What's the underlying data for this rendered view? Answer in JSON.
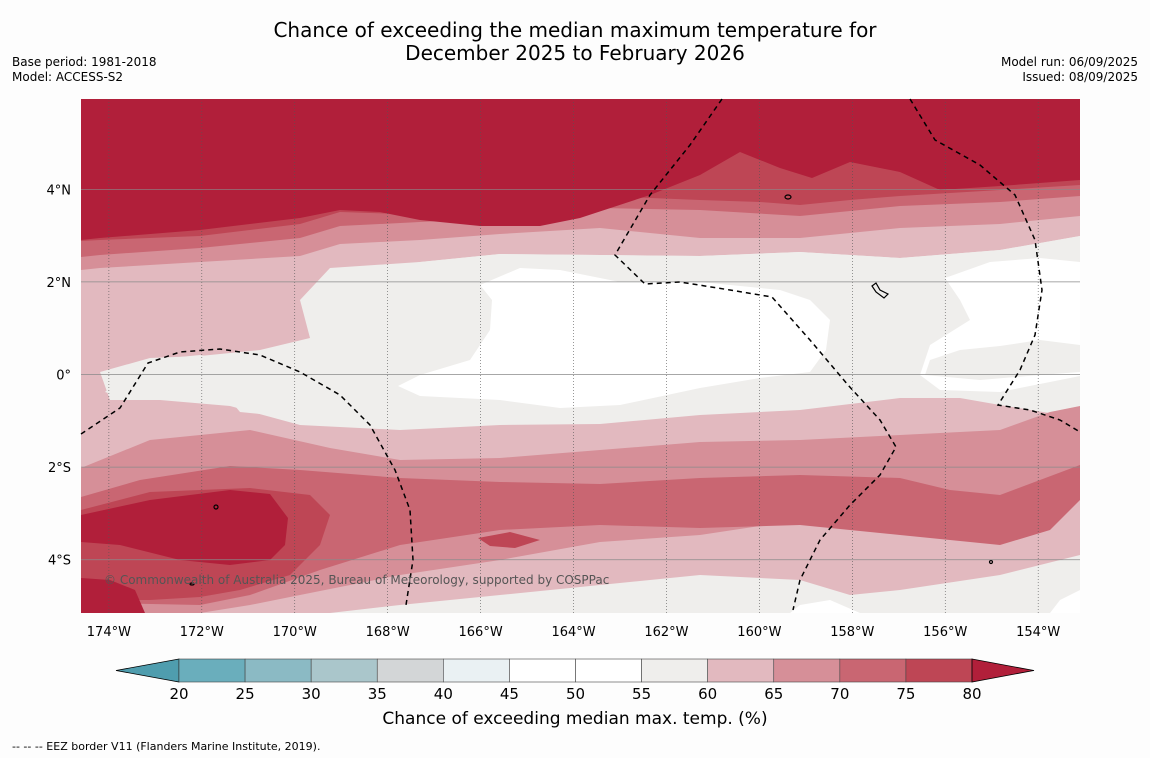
{
  "title": {
    "line1": "Chance of exceeding the median maximum temperature for",
    "line2": "December 2025 to February 2026"
  },
  "meta_left": {
    "base_period": "Base period: 1981-2018",
    "model": "Model: ACCESS-S2"
  },
  "meta_right": {
    "model_run": "Model run: 06/09/2025",
    "issued": "Issued: 08/09/2025"
  },
  "map": {
    "lon_ticks": [
      "174°W",
      "172°W",
      "170°W",
      "168°W",
      "166°W",
      "164°W",
      "162°W",
      "160°W",
      "158°W",
      "156°W",
      "154°W"
    ],
    "lat_ticks": [
      "4°N",
      "2°N",
      "0°",
      "2°S",
      "4°S"
    ],
    "lon_range": [
      -174.6,
      -153.1
    ],
    "lat_range": [
      -5.15,
      5.95
    ],
    "copyright": "© Commonwealth of Australia 2025, Bureau of Meteorology, supported by COSPPac"
  },
  "colorbar": {
    "ticks": [
      "20",
      "25",
      "30",
      "35",
      "40",
      "45",
      "50",
      "55",
      "60",
      "65",
      "70",
      "75",
      "80"
    ],
    "colors": [
      "#6aaebc",
      "#8bbac4",
      "#aac6cb",
      "#d3d6d7",
      "#eaf1f3",
      "#ffffff",
      "#ffffff",
      "#efeeec",
      "#e2b9bf",
      "#d68f98",
      "#c96672",
      "#be4655"
    ],
    "under_color": "#4f9dae",
    "over_color": "#b11f3a",
    "label": "Chance of exceeding median max. temp. (%)"
  },
  "footer": "--  --  -- EEZ border V11 (Flanders Marine Institute, 2019)."
}
